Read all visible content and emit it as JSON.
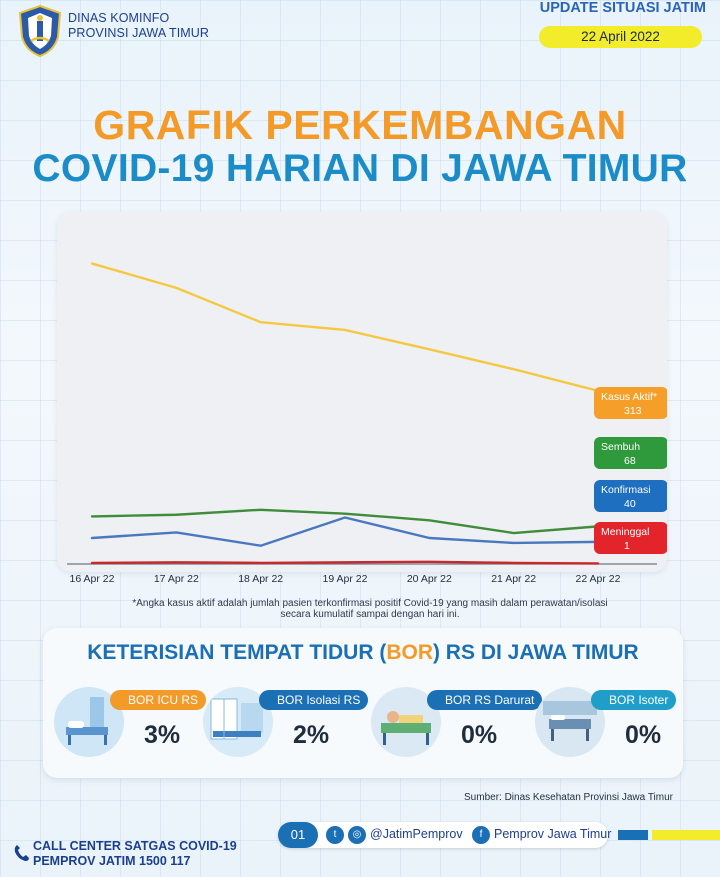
{
  "header": {
    "org_line1": "DINAS KOMINFO",
    "org_line2": "PROVINSI JAWA TIMUR",
    "update_title": "UPDATE SITUASI JATIM",
    "update_date": "22 April 2022"
  },
  "title": {
    "line1": "GRAFIK PERKEMBANGAN",
    "line2": "COVID-19 HARIAN DI JAWA TIMUR"
  },
  "colors": {
    "kasus_aktif": "#f6c842",
    "sembuh": "#3f8c3a",
    "konfirmasi": "#4a78c0",
    "meninggal": "#c9282d",
    "tag_kasus_aktif": "#f59e28",
    "tag_sembuh": "#2f9a3c",
    "tag_konfirmasi": "#1f6fc0",
    "tag_meninggal": "#e3242b"
  },
  "chart_data": {
    "type": "line",
    "categories": [
      "16 Apr 22",
      "17 Apr 22",
      "18 Apr 22",
      "19 Apr 22",
      "20 Apr 22",
      "21 Apr 22",
      "22 Apr 22"
    ],
    "ylim": [
      0,
      600
    ],
    "grid": false,
    "series": [
      {
        "name": "Kasus Aktif*",
        "values": [
          543,
          499,
          437,
          423,
          388,
          352,
          313
        ],
        "color_key": "kasus_aktif",
        "tag_color_key": "tag_kasus_aktif"
      },
      {
        "name": "Sembuh",
        "values": [
          86,
          89,
          98,
          91,
          79,
          56,
          68
        ],
        "color_key": "sembuh",
        "tag_color_key": "tag_sembuh"
      },
      {
        "name": "Konfirmasi",
        "values": [
          47,
          57,
          33,
          84,
          47,
          38,
          40
        ],
        "color_key": "konfirmasi",
        "tag_color_key": "tag_konfirmasi"
      },
      {
        "name": "Meninggal",
        "values": [
          2,
          3,
          2,
          3,
          4,
          2,
          1
        ],
        "color_key": "meninggal",
        "tag_color_key": "tag_meninggal"
      }
    ],
    "annotations": [
      {
        "series": "Kasus Aktif*",
        "label": "Kasus Aktif*",
        "value": "313"
      },
      {
        "series": "Sembuh",
        "label": "Sembuh",
        "value": "68"
      },
      {
        "series": "Konfirmasi",
        "label": "Konfirmasi",
        "value": "40"
      },
      {
        "series": "Meninggal",
        "label": "Meninggal",
        "value": "1"
      }
    ]
  },
  "footnote": {
    "line1": "*Angka kasus aktif adalah jumlah pasien terkonfirmasi positif Covid-19 yang masih dalam perawatan/isolasi",
    "line2": "secara kumulatif sampai dengan hari ini."
  },
  "bor": {
    "title_pre": "KETERISIAN TEMPAT TIDUR (",
    "title_hl": "BOR",
    "title_post": ") RS DI JAWA TIMUR",
    "items": [
      {
        "label": "BOR ICU RS",
        "value": "3%",
        "color": "#f39a28"
      },
      {
        "label": "BOR Isolasi RS",
        "value": "2%",
        "color": "#1b6fb4"
      },
      {
        "label": "BOR RS Darurat",
        "value": "0%",
        "color": "#1b6fb4"
      },
      {
        "label": "BOR Isoter",
        "value": "0%",
        "color": "#1f9ec9"
      }
    ]
  },
  "source": "Sumber: Dinas Kesehatan Provinsi Jawa Timur",
  "footer": {
    "call_line1": "CALL CENTER SATGAS COVID-19",
    "call_line2": "PEMPROV JATIM 1500 117",
    "page": "01",
    "handle": "@JatimPemprov",
    "facebook": "Pemprov Jawa Timur"
  }
}
